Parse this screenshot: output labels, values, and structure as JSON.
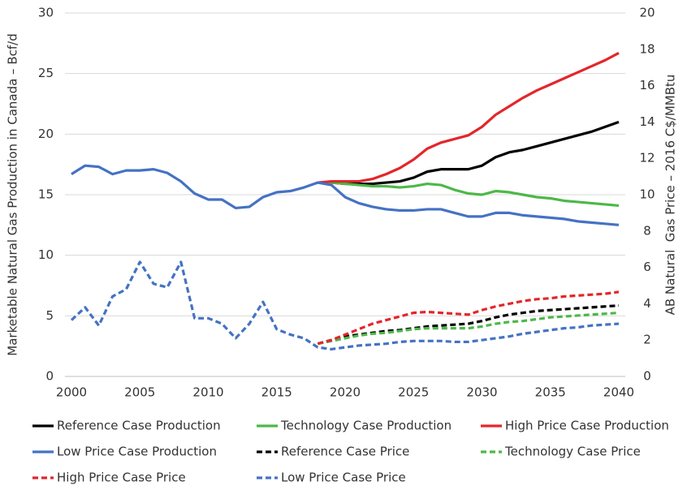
{
  "chart_data": {
    "type": "line",
    "y_label": "Marketable Natural Gas Production in Canada – Bcf/d",
    "y2_label": "AB Natural  Gas Price – 2016 C$/MMBtu",
    "x": [
      2000,
      2001,
      2002,
      2003,
      2004,
      2005,
      2006,
      2007,
      2008,
      2009,
      2010,
      2011,
      2012,
      2013,
      2014,
      2015,
      2016,
      2017,
      2018,
      2019,
      2020,
      2021,
      2022,
      2023,
      2024,
      2025,
      2026,
      2027,
      2028,
      2029,
      2030,
      2031,
      2032,
      2033,
      2034,
      2035,
      2036,
      2037,
      2038,
      2039,
      2040
    ],
    "xlim": [
      2000,
      2040
    ],
    "xticks": [
      2000,
      2005,
      2010,
      2015,
      2020,
      2025,
      2030,
      2035,
      2040
    ],
    "ylim": [
      0,
      30
    ],
    "yticks": [
      0,
      5,
      10,
      15,
      20,
      25,
      30
    ],
    "y2lim": [
      0,
      20
    ],
    "y2ticks": [
      0,
      2,
      4,
      6,
      8,
      10,
      12,
      14,
      16,
      18,
      20
    ],
    "grid": true,
    "legend": "bottom",
    "series": [
      {
        "name": "Reference Case Production",
        "color": "#000000",
        "dashed": false,
        "values": [
          null,
          null,
          null,
          null,
          null,
          null,
          null,
          null,
          null,
          null,
          null,
          null,
          null,
          null,
          null,
          null,
          null,
          null,
          16.0,
          16.0,
          15.9,
          15.9,
          15.9,
          16.0,
          16.1,
          16.4,
          16.9,
          17.1,
          17.1,
          17.1,
          17.4,
          18.1,
          18.5,
          18.7,
          19.0,
          19.3,
          19.6,
          19.9,
          20.2,
          20.6,
          21.0
        ]
      },
      {
        "name": "Technology Case Production",
        "color": "#4db848",
        "dashed": false,
        "values": [
          null,
          null,
          null,
          null,
          null,
          null,
          null,
          null,
          null,
          null,
          null,
          null,
          null,
          null,
          null,
          null,
          null,
          null,
          16.0,
          16.0,
          15.9,
          15.8,
          15.7,
          15.7,
          15.6,
          15.7,
          15.9,
          15.8,
          15.4,
          15.1,
          15.0,
          15.3,
          15.2,
          15.0,
          14.8,
          14.7,
          14.5,
          14.4,
          14.3,
          14.2,
          14.1
        ]
      },
      {
        "name": "High Price Case Production",
        "color": "#e3262b",
        "dashed": false,
        "values": [
          null,
          null,
          null,
          null,
          null,
          null,
          null,
          null,
          null,
          null,
          null,
          null,
          null,
          null,
          null,
          null,
          null,
          null,
          16.0,
          16.1,
          16.1,
          16.1,
          16.3,
          16.7,
          17.2,
          17.9,
          18.8,
          19.3,
          19.6,
          19.9,
          20.6,
          21.6,
          22.3,
          23.0,
          23.6,
          24.1,
          24.6,
          25.1,
          25.6,
          26.1,
          26.7
        ]
      },
      {
        "name": "Low Price Case Production",
        "color": "#4472c4",
        "dashed": false,
        "values": [
          16.7,
          17.4,
          17.3,
          16.7,
          17.0,
          17.0,
          17.1,
          16.8,
          16.1,
          15.1,
          14.6,
          14.6,
          13.9,
          14.0,
          14.8,
          15.2,
          15.3,
          15.6,
          16.0,
          15.8,
          14.8,
          14.3,
          14.0,
          13.8,
          13.7,
          13.7,
          13.8,
          13.8,
          13.5,
          13.2,
          13.2,
          13.5,
          13.5,
          13.3,
          13.2,
          13.1,
          13.0,
          12.8,
          12.7,
          12.6,
          12.5
        ]
      },
      {
        "name": "Reference Case Price",
        "color": "#000000",
        "dashed": true,
        "axis": "y2",
        "values": [
          null,
          null,
          null,
          null,
          null,
          null,
          null,
          null,
          null,
          null,
          null,
          null,
          null,
          null,
          null,
          null,
          null,
          null,
          1.8,
          2.0,
          2.2,
          2.3,
          2.4,
          2.5,
          2.55,
          2.65,
          2.75,
          2.8,
          2.85,
          2.9,
          3.05,
          3.25,
          3.4,
          3.5,
          3.6,
          3.65,
          3.7,
          3.75,
          3.8,
          3.85,
          3.9
        ]
      },
      {
        "name": "Technology Case Price",
        "color": "#4db848",
        "dashed": true,
        "axis": "y2",
        "values": [
          null,
          null,
          null,
          null,
          null,
          null,
          null,
          null,
          null,
          null,
          null,
          null,
          null,
          null,
          null,
          null,
          null,
          null,
          1.8,
          1.95,
          2.1,
          2.25,
          2.35,
          2.4,
          2.5,
          2.6,
          2.65,
          2.65,
          2.65,
          2.65,
          2.75,
          2.9,
          3.0,
          3.05,
          3.15,
          3.25,
          3.3,
          3.35,
          3.4,
          3.45,
          3.5
        ]
      },
      {
        "name": "High Price Case Price",
        "color": "#e3262b",
        "dashed": true,
        "axis": "y2",
        "values": [
          null,
          null,
          null,
          null,
          null,
          null,
          null,
          null,
          null,
          null,
          null,
          null,
          null,
          null,
          null,
          null,
          null,
          null,
          1.8,
          2.0,
          2.3,
          2.6,
          2.9,
          3.1,
          3.3,
          3.5,
          3.55,
          3.5,
          3.45,
          3.4,
          3.65,
          3.85,
          4.0,
          4.15,
          4.25,
          4.3,
          4.4,
          4.45,
          4.5,
          4.55,
          4.65
        ]
      },
      {
        "name": "Low Price Case Price",
        "color": "#4472c4",
        "dashed": true,
        "axis": "y2",
        "values": [
          3.1,
          3.8,
          2.8,
          4.4,
          4.8,
          6.3,
          5.1,
          4.9,
          6.3,
          3.2,
          3.2,
          2.9,
          2.1,
          2.9,
          4.1,
          2.6,
          2.3,
          2.1,
          1.6,
          1.5,
          1.6,
          1.7,
          1.75,
          1.8,
          1.9,
          1.95,
          1.95,
          1.95,
          1.9,
          1.9,
          2.0,
          2.1,
          2.2,
          2.35,
          2.45,
          2.55,
          2.65,
          2.7,
          2.8,
          2.85,
          2.9
        ]
      }
    ]
  }
}
